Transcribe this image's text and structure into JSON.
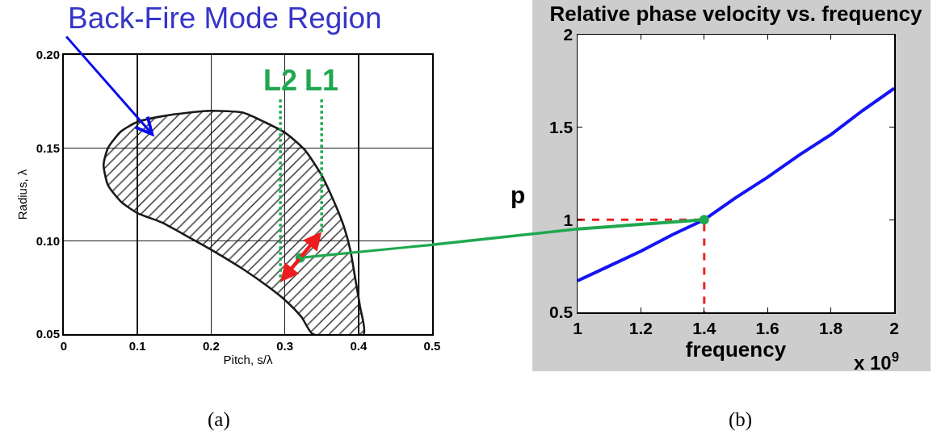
{
  "chart_data": [
    {
      "type": "area",
      "xlabel": "Pitch, s/λ",
      "ylabel": "Radius, λ",
      "xlim": [
        0,
        0.5
      ],
      "ylim": [
        0.05,
        0.2
      ],
      "xticks": [
        0,
        0.1,
        0.2,
        0.3,
        0.4,
        0.5
      ],
      "yticks": [
        0.05,
        {
          "value": 0.1,
          "label": "0.10"
        },
        0.15,
        {
          "value": 0.2,
          "label": "0.20"
        }
      ],
      "grid": true,
      "series": [
        {
          "color": "#1a1a1a",
          "x": [
            0.054,
            0.06,
            0.078,
            0.1,
            0.133,
            0.17,
            0.2,
            0.243,
            0.272,
            0.301,
            0.327,
            0.349,
            0.367,
            0.38,
            0.389,
            0.396,
            0.402,
            0.407,
            0.338,
            0.323,
            0.301,
            0.279,
            0.243,
            0.206,
            0.17,
            0.133,
            0.1,
            0.078,
            0.06,
            0.054
          ],
          "values": [
            0.141,
            0.15,
            0.159,
            0.164,
            0.167,
            0.169,
            0.17,
            0.169,
            0.164,
            0.158,
            0.149,
            0.136,
            0.121,
            0.108,
            0.095,
            0.079,
            0.065,
            0.05,
            0.05,
            0.059,
            0.068,
            0.075,
            0.085,
            0.094,
            0.102,
            0.11,
            0.115,
            0.121,
            0.13,
            0.141
          ]
        },
        {
          "type": "line",
          "color": "#1fa84f",
          "line_style": "dotted",
          "x": [
            0.294,
            0.294
          ],
          "values": [
            0.176,
            0.078
          ]
        },
        {
          "type": "line",
          "color": "#1fa84f",
          "line_style": "dotted",
          "x": [
            0.35,
            0.35
          ],
          "values": [
            0.176,
            0.105
          ]
        },
        {
          "type": "line",
          "color": "#1fa84f",
          "x": [
            0.321,
            0.5
          ],
          "values": [
            0.091,
            0.098
          ]
        },
        {
          "type": "scatter",
          "color": "#1fa84f",
          "marker": "circle",
          "x": [
            0.321
          ],
          "values": [
            0.091
          ]
        }
      ],
      "annotations": [
        "Back-Fire Mode Region",
        {
          "text": "L2",
          "x": 0.294,
          "y": 0.176
        },
        {
          "text": "L1",
          "x": 0.35,
          "y": 0.176
        },
        "(a)"
      ]
    },
    {
      "type": "line",
      "title": "Relative phase velocity vs. frequency",
      "xlabel": "frequency",
      "ylabel": "p",
      "xlim": [
        1,
        2
      ],
      "ylim": [
        0.5,
        2
      ],
      "xticks": [
        1,
        1.2,
        1.4,
        1.6,
        1.8,
        2
      ],
      "yticks": [
        0.5,
        1,
        1.5,
        2
      ],
      "series": [
        {
          "color": "#1414f5",
          "x": [
            1,
            1.1,
            1.2,
            1.3,
            1.4,
            1.5,
            1.6,
            1.7,
            1.8,
            1.9,
            2
          ],
          "values": [
            0.67,
            0.75,
            0.83,
            0.92,
            1.0,
            1.12,
            1.23,
            1.35,
            1.46,
            1.59,
            1.71
          ]
        },
        {
          "color": "#ee2222",
          "line_style": "dashed",
          "x": [
            1,
            1.4,
            1.4
          ],
          "values": [
            1,
            1,
            0.5
          ]
        },
        {
          "color": "#1fa84f",
          "x": [
            1,
            1.4
          ],
          "values": [
            0.95,
            1.0
          ]
        },
        {
          "type": "scatter",
          "color": "#1fa84f",
          "marker": "circle",
          "x": [
            1.4
          ],
          "values": [
            1
          ]
        }
      ],
      "annotations": [
        "x 10$^{9}$",
        "(b)"
      ]
    }
  ]
}
